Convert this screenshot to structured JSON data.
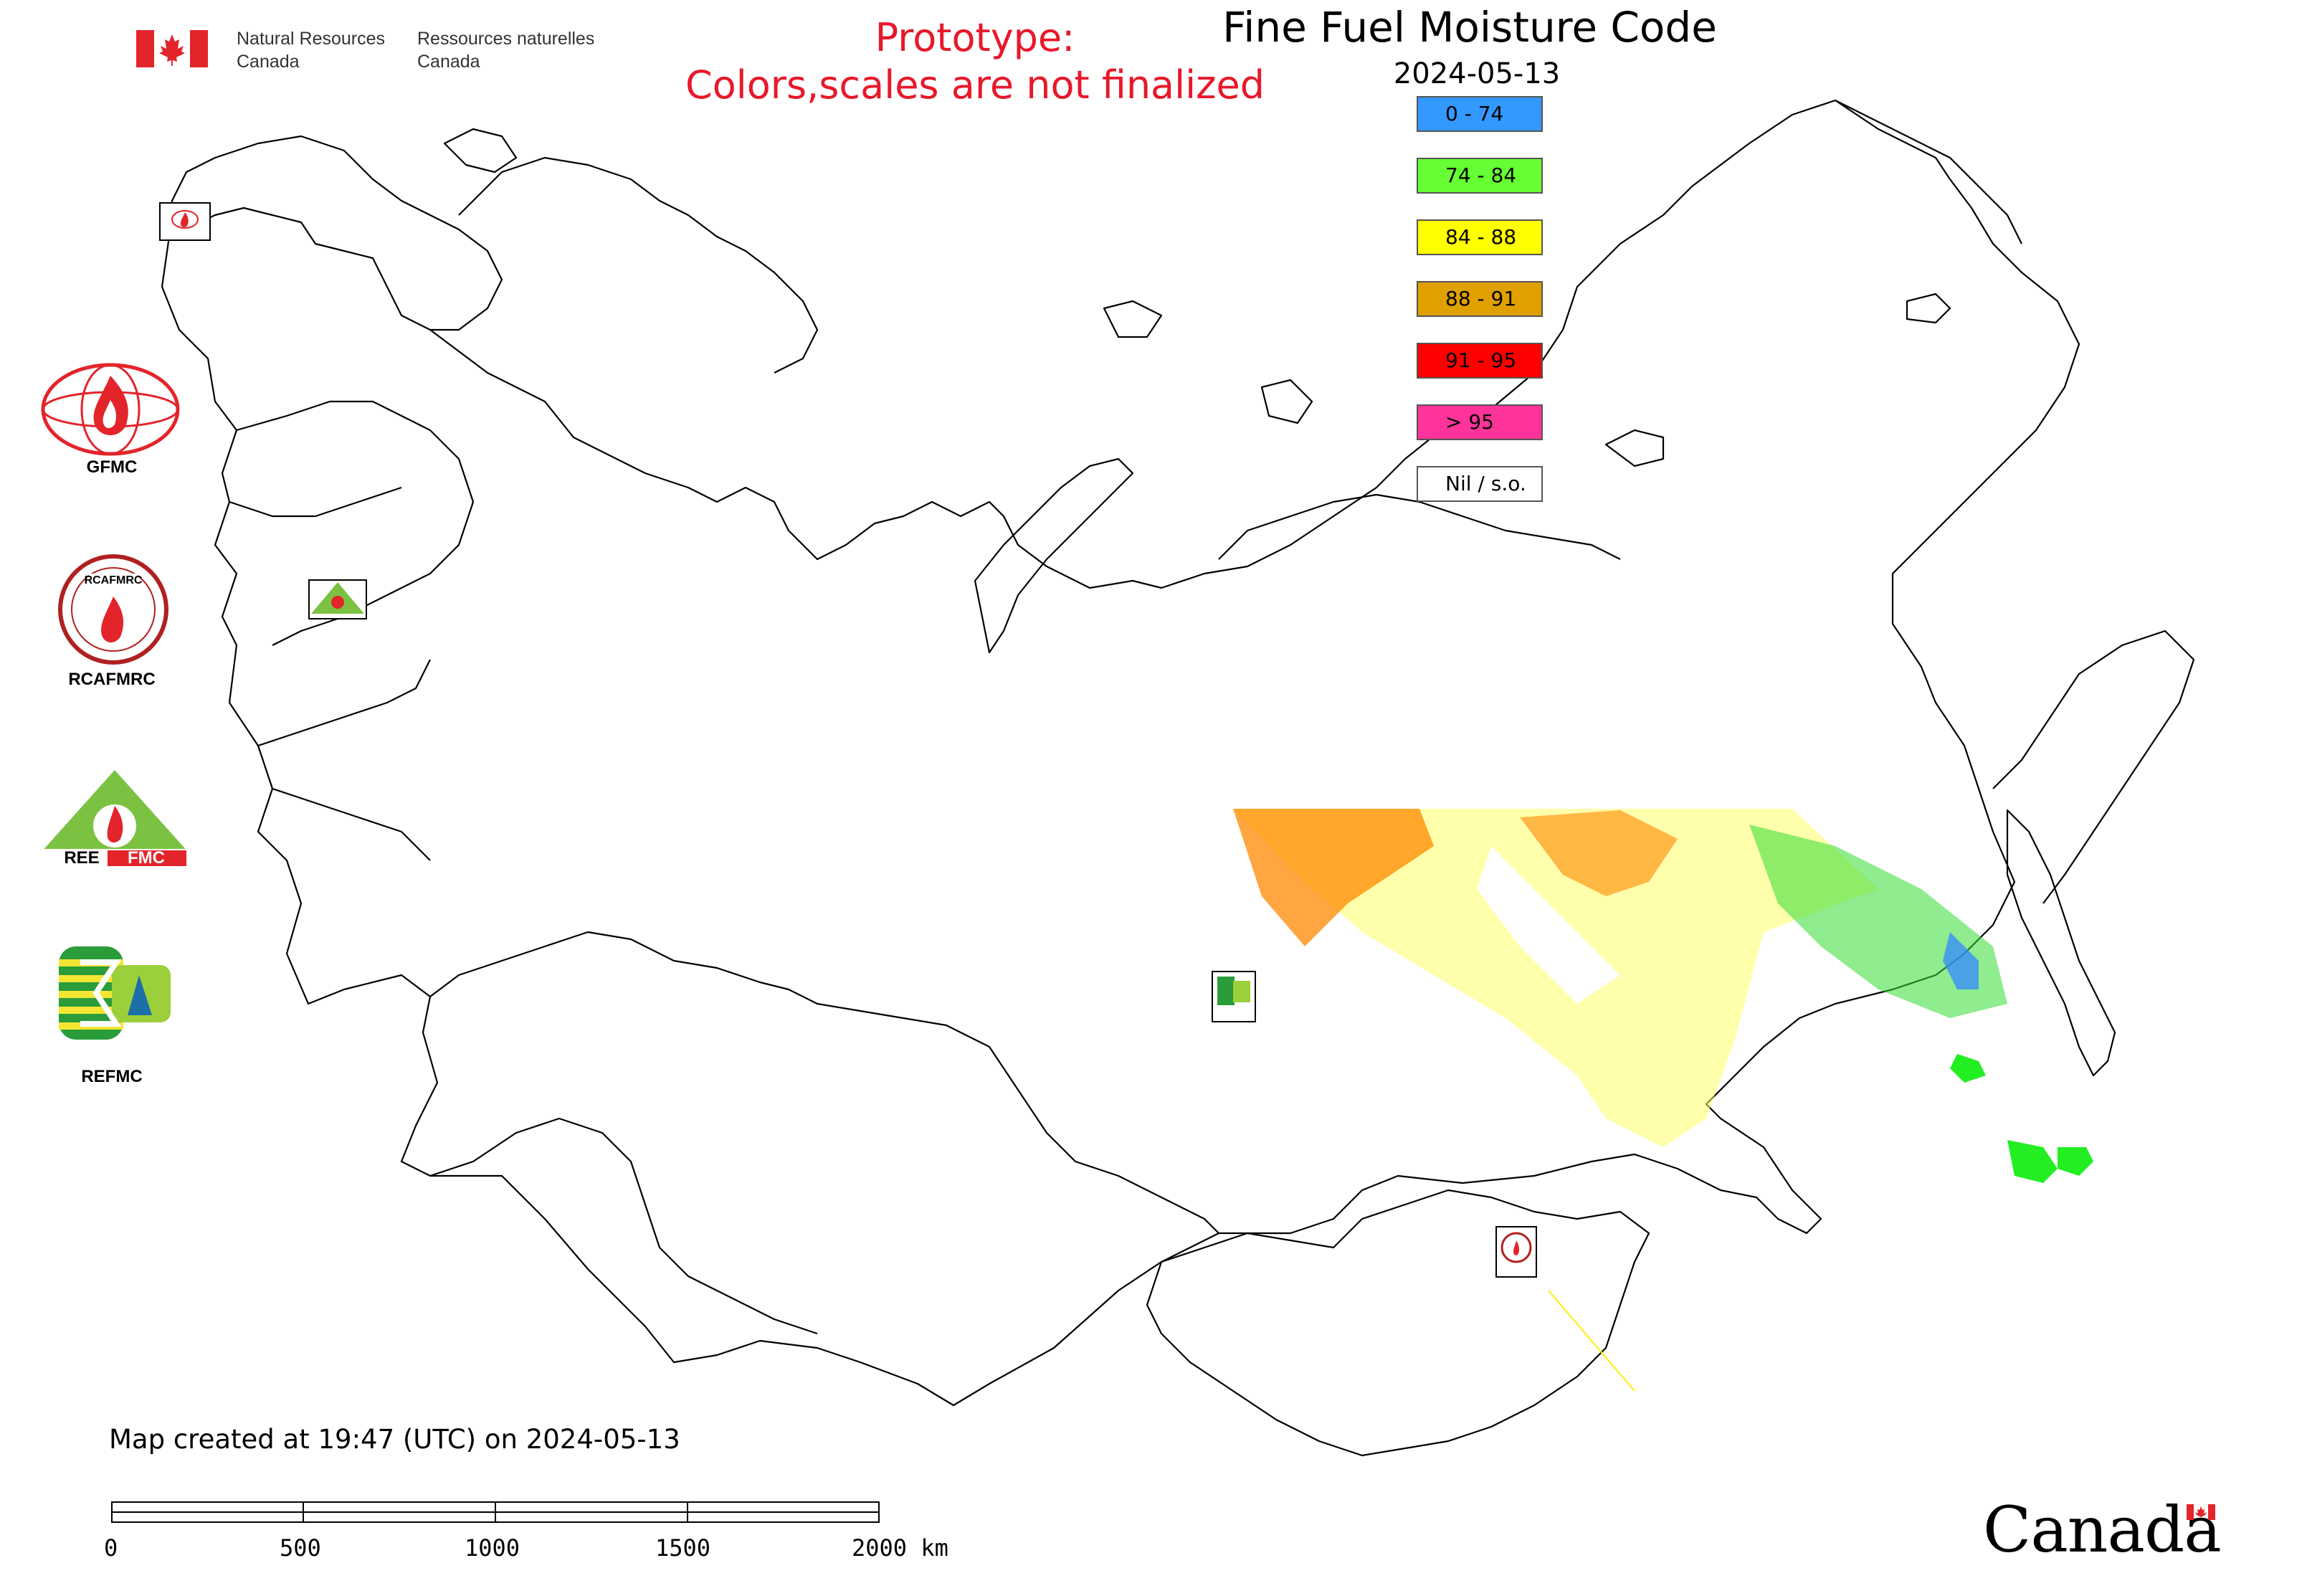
{
  "header": {
    "org_en_line1": "Natural Resources",
    "org_en_line2": "Canada",
    "org_fr_line1": "Ressources naturelles",
    "org_fr_line2": "Canada",
    "prototype_line1": "Prototype:",
    "prototype_line2": "Colors,scales are not finalized"
  },
  "map": {
    "title": "Fine Fuel Moisture Code",
    "date": "2024-05-13",
    "created_note": "Map created at 19:47 (UTC) on 2024-05-13"
  },
  "legend": [
    {
      "label": "0 - 74",
      "color": "#3399ff"
    },
    {
      "label": "74 - 84",
      "color": "#66ff33"
    },
    {
      "label": "84 - 88",
      "color": "#ffff00"
    },
    {
      "label": "88 - 91",
      "color": "#e0a000"
    },
    {
      "label": "91 - 95",
      "color": "#ff0000"
    },
    {
      "label": "> 95",
      "color": "#ff3399"
    },
    {
      "label": "Nil / s.o.",
      "color": "#ffffff"
    }
  ],
  "logos": {
    "gfmc": "GFMC",
    "rcafmrc": "RCAFMRC",
    "reefmc": "REEFMC",
    "refmc": "REFMC"
  },
  "scale": {
    "ticks": [
      "0",
      "500",
      "1000",
      "1500",
      "2000 km"
    ]
  },
  "wordmark": "Canada",
  "colors": {
    "prototype_red": "#e8182a",
    "flag_red": "#e3242b"
  }
}
